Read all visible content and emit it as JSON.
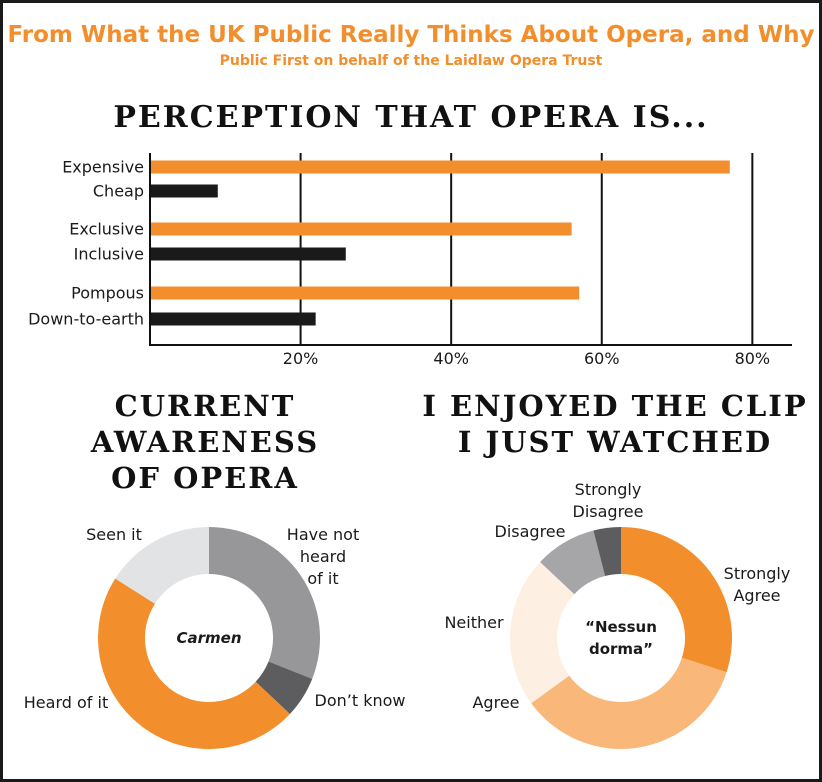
{
  "header": {
    "title": "From What the UK Public Really Thinks About Opera, and Why",
    "subtitle": "Public First on behalf of the Laidlaw Opera Trust"
  },
  "colors": {
    "accent": "#f28e2b",
    "dark": "#1a1a1a",
    "axis": "#111111"
  },
  "chart_data": [
    {
      "type": "bar",
      "orientation": "horizontal",
      "title": "PERCEPTION THAT OPERA IS...",
      "categories": [
        "Expensive",
        "Cheap",
        "Exclusive",
        "Inclusive",
        "Pompous",
        "Down-to-earth"
      ],
      "values": [
        77,
        9,
        56,
        26,
        57,
        22
      ],
      "bar_colors": [
        "#f28e2b",
        "#1a1a1a",
        "#f28e2b",
        "#1a1a1a",
        "#f28e2b",
        "#1a1a1a"
      ],
      "xlim": [
        0,
        85
      ],
      "xticks": [
        20,
        40,
        60,
        80
      ],
      "xtick_labels": [
        "20%",
        "40%",
        "60%",
        "80%"
      ],
      "grid": true
    },
    {
      "type": "pie",
      "donut": true,
      "title": "CURRENT AWARENESS OF OPERA",
      "center_label": "Carmen",
      "categories": [
        "Have not heard of it",
        "Don't know",
        "Heard of it",
        "Seen it"
      ],
      "label_lines": [
        [
          "Have not",
          "heard",
          "of it"
        ],
        [
          "Don’t know"
        ],
        [
          "Heard of it"
        ],
        [
          "Seen it"
        ]
      ],
      "values": [
        31,
        6,
        47,
        16
      ],
      "colors": [
        "#97979a",
        "#5d5d60",
        "#f28e2b",
        "#e2e3e5"
      ]
    },
    {
      "type": "pie",
      "donut": true,
      "title": "I ENJOYED THE CLIP I JUST WATCHED",
      "center_label": "“Nessun dorma”",
      "categories": [
        "Strongly Agree",
        "Agree",
        "Neither",
        "Disagree",
        "Strongly Disagree"
      ],
      "label_lines": [
        [
          "Strongly",
          "Agree"
        ],
        [
          "Agree"
        ],
        [
          "Neither"
        ],
        [
          "Disagree"
        ],
        [
          "Strongly",
          "Disagree"
        ]
      ],
      "values": [
        30,
        35,
        22,
        9,
        4
      ],
      "colors": [
        "#f28e2b",
        "#f9b87a",
        "#fdefe1",
        "#a6a6a8",
        "#5d5d60"
      ]
    }
  ]
}
